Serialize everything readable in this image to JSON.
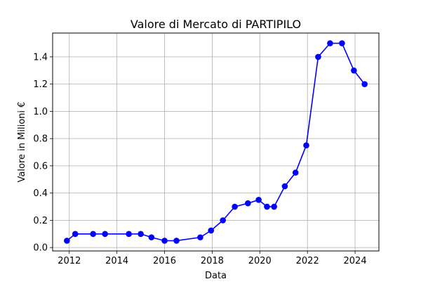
{
  "chart_data": {
    "type": "line",
    "title": "Valore di Mercato di PARTIPILO",
    "xlabel": "Data",
    "ylabel": "Valore in Milioni €",
    "xlim": [
      2011.3,
      2025.0
    ],
    "ylim": [
      -0.025,
      1.575
    ],
    "x_ticks": [
      2012,
      2014,
      2016,
      2018,
      2020,
      2022,
      2024
    ],
    "x_tick_labels": [
      "2012",
      "2014",
      "2016",
      "2018",
      "2020",
      "2022",
      "2024"
    ],
    "y_ticks": [
      0.0,
      0.2,
      0.4,
      0.6,
      0.8,
      1.0,
      1.2,
      1.4
    ],
    "y_tick_labels": [
      "0.0",
      "0.2",
      "0.4",
      "0.6",
      "0.8",
      "1.0",
      "1.2",
      "1.4"
    ],
    "grid": true,
    "series": [
      {
        "color": "#0000ff",
        "marker": "circle",
        "points": [
          [
            2011.9,
            0.05
          ],
          [
            2012.25,
            0.1
          ],
          [
            2013.0,
            0.1
          ],
          [
            2013.5,
            0.1
          ],
          [
            2014.5,
            0.1
          ],
          [
            2015.0,
            0.1
          ],
          [
            2015.45,
            0.075
          ],
          [
            2016.0,
            0.05
          ],
          [
            2016.5,
            0.05
          ],
          [
            2017.5,
            0.075
          ],
          [
            2017.95,
            0.125
          ],
          [
            2018.45,
            0.2
          ],
          [
            2018.95,
            0.3
          ],
          [
            2019.5,
            0.325
          ],
          [
            2019.95,
            0.35
          ],
          [
            2020.3,
            0.3
          ],
          [
            2020.6,
            0.3
          ],
          [
            2021.05,
            0.45
          ],
          [
            2021.5,
            0.55
          ],
          [
            2021.95,
            0.75
          ],
          [
            2022.45,
            1.4
          ],
          [
            2022.95,
            1.5
          ],
          [
            2023.45,
            1.5
          ],
          [
            2023.95,
            1.3
          ],
          [
            2024.4,
            1.2
          ]
        ]
      }
    ]
  }
}
